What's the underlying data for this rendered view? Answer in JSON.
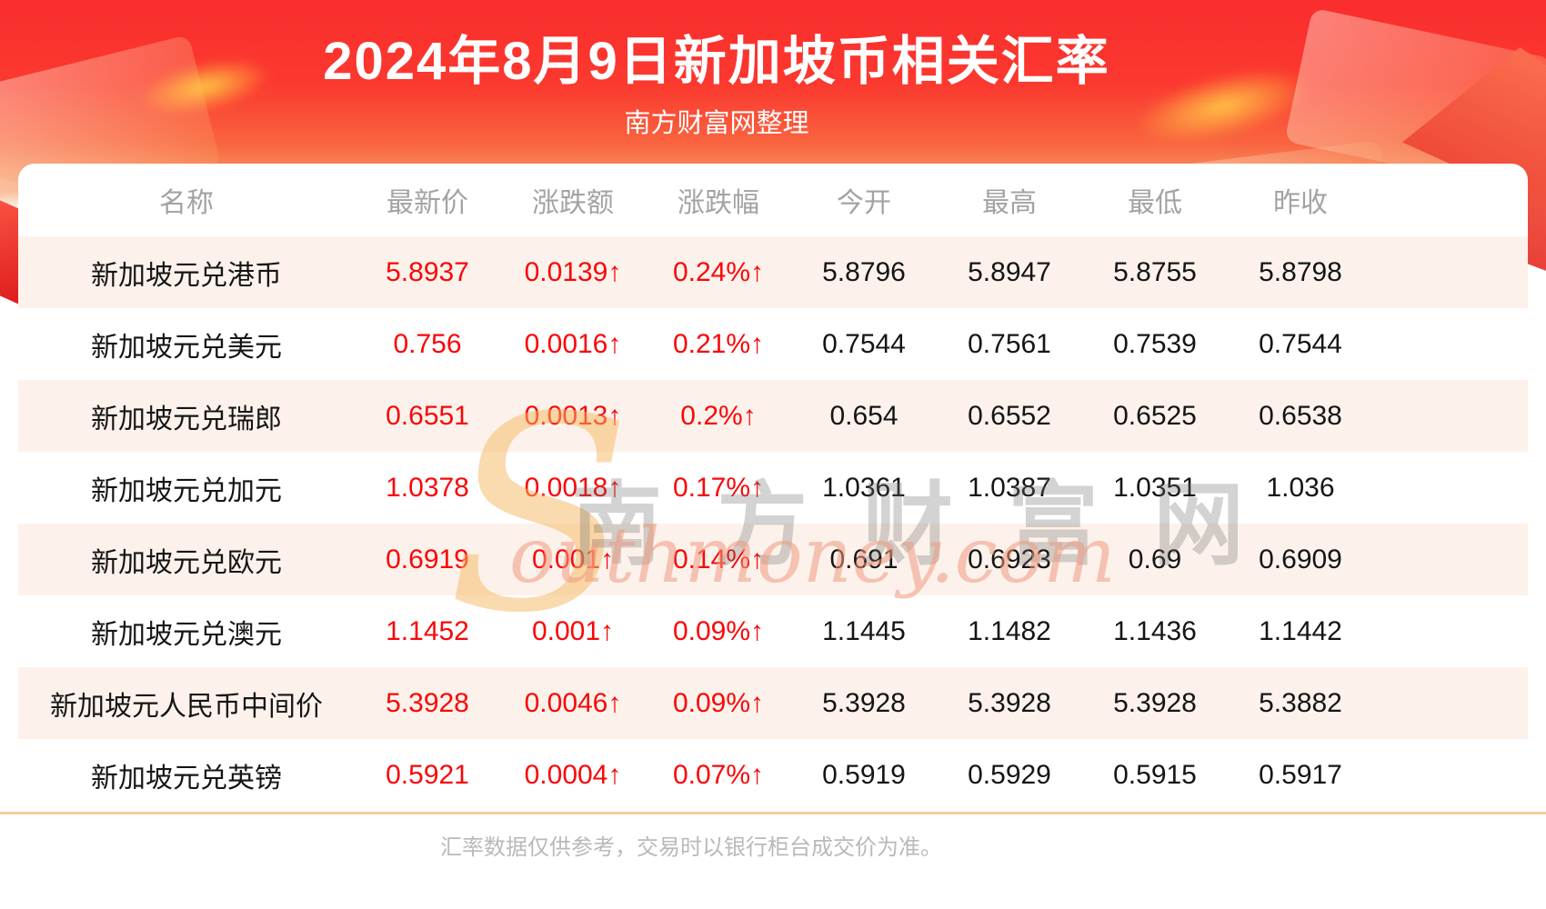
{
  "header": {
    "title": "2024年8月9日新加坡币相关汇率",
    "subtitle": "南方财富网整理"
  },
  "table": {
    "columns": [
      "名称",
      "最新价",
      "涨跌额",
      "涨跌幅",
      "今开",
      "最高",
      "最低",
      "昨收"
    ],
    "rows": [
      {
        "name": "新加坡元兑港币",
        "latest": "5.8937",
        "change": "0.0139↑",
        "change_pct": "0.24%↑",
        "open": "5.8796",
        "high": "5.8947",
        "low": "5.8755",
        "prev_close": "5.8798"
      },
      {
        "name": "新加坡元兑美元",
        "latest": "0.756",
        "change": "0.0016↑",
        "change_pct": "0.21%↑",
        "open": "0.7544",
        "high": "0.7561",
        "low": "0.7539",
        "prev_close": "0.7544"
      },
      {
        "name": "新加坡元兑瑞郎",
        "latest": "0.6551",
        "change": "0.0013↑",
        "change_pct": "0.2%↑",
        "open": "0.654",
        "high": "0.6552",
        "low": "0.6525",
        "prev_close": "0.6538"
      },
      {
        "name": "新加坡元兑加元",
        "latest": "1.0378",
        "change": "0.0018↑",
        "change_pct": "0.17%↑",
        "open": "1.0361",
        "high": "1.0387",
        "low": "1.0351",
        "prev_close": "1.036"
      },
      {
        "name": "新加坡元兑欧元",
        "latest": "0.6919",
        "change": "0.001↑",
        "change_pct": "0.14%↑",
        "open": "0.691",
        "high": "0.6923",
        "low": "0.69",
        "prev_close": "0.6909"
      },
      {
        "name": "新加坡元兑澳元",
        "latest": "1.1452",
        "change": "0.001↑",
        "change_pct": "0.09%↑",
        "open": "1.1445",
        "high": "1.1482",
        "low": "1.1436",
        "prev_close": "1.1442"
      },
      {
        "name": "新加坡元人民币中间价",
        "latest": "5.3928",
        "change": "0.0046↑",
        "change_pct": "0.09%↑",
        "open": "5.3928",
        "high": "5.3928",
        "low": "5.3928",
        "prev_close": "5.3882"
      },
      {
        "name": "新加坡元兑英镑",
        "latest": "0.5921",
        "change": "0.0004↑",
        "change_pct": "0.07%↑",
        "open": "0.5919",
        "high": "0.5929",
        "low": "0.5915",
        "prev_close": "0.5917"
      }
    ]
  },
  "watermark": {
    "swoosh_letter": "S",
    "text_cn": "南方财富网",
    "text_en": "outhmoney.com"
  },
  "footer": {
    "disclaimer": "汇率数据仅供参考，交易时以银行柜台成交价为准。"
  },
  "colors": {
    "banner_red_top": "#fa2d2d",
    "banner_peach_bottom": "#f9c493",
    "value_red": "#f90708",
    "row_pink": "#fdf2eb",
    "header_gray": "#a3a3a3",
    "divider_orange": "#f6cf9e",
    "footer_gray": "#b9b9b9"
  },
  "chart_data": {
    "type": "table",
    "title": "2024年8月9日新加坡币相关汇率",
    "subtitle": "南方财富网整理",
    "columns": [
      "名称",
      "最新价",
      "涨跌额",
      "涨跌幅",
      "今开",
      "最高",
      "最低",
      "昨收"
    ],
    "rows": [
      [
        "新加坡元兑港币",
        "5.8937",
        "0.0139↑",
        "0.24%↑",
        "5.8796",
        "5.8947",
        "5.8755",
        "5.8798"
      ],
      [
        "新加坡元兑美元",
        "0.756",
        "0.0016↑",
        "0.21%↑",
        "0.7544",
        "0.7561",
        "0.7539",
        "0.7544"
      ],
      [
        "新加坡元兑瑞郎",
        "0.6551",
        "0.0013↑",
        "0.2%↑",
        "0.654",
        "0.6552",
        "0.6525",
        "0.6538"
      ],
      [
        "新加坡元兑加元",
        "1.0378",
        "0.0018↑",
        "0.17%↑",
        "1.0361",
        "1.0387",
        "1.0351",
        "1.036"
      ],
      [
        "新加坡元兑欧元",
        "0.6919",
        "0.001↑",
        "0.14%↑",
        "0.691",
        "0.6923",
        "0.69",
        "0.6909"
      ],
      [
        "新加坡元兑澳元",
        "1.1452",
        "0.001↑",
        "0.09%↑",
        "1.1445",
        "1.1482",
        "1.1436",
        "1.1442"
      ],
      [
        "新加坡元人民币中间价",
        "5.3928",
        "0.0046↑",
        "0.09%↑",
        "5.3928",
        "5.3928",
        "5.3928",
        "5.3882"
      ],
      [
        "新加坡元兑英镑",
        "0.5921",
        "0.0004↑",
        "0.07%↑",
        "0.5919",
        "0.5929",
        "0.5915",
        "0.5917"
      ]
    ]
  }
}
